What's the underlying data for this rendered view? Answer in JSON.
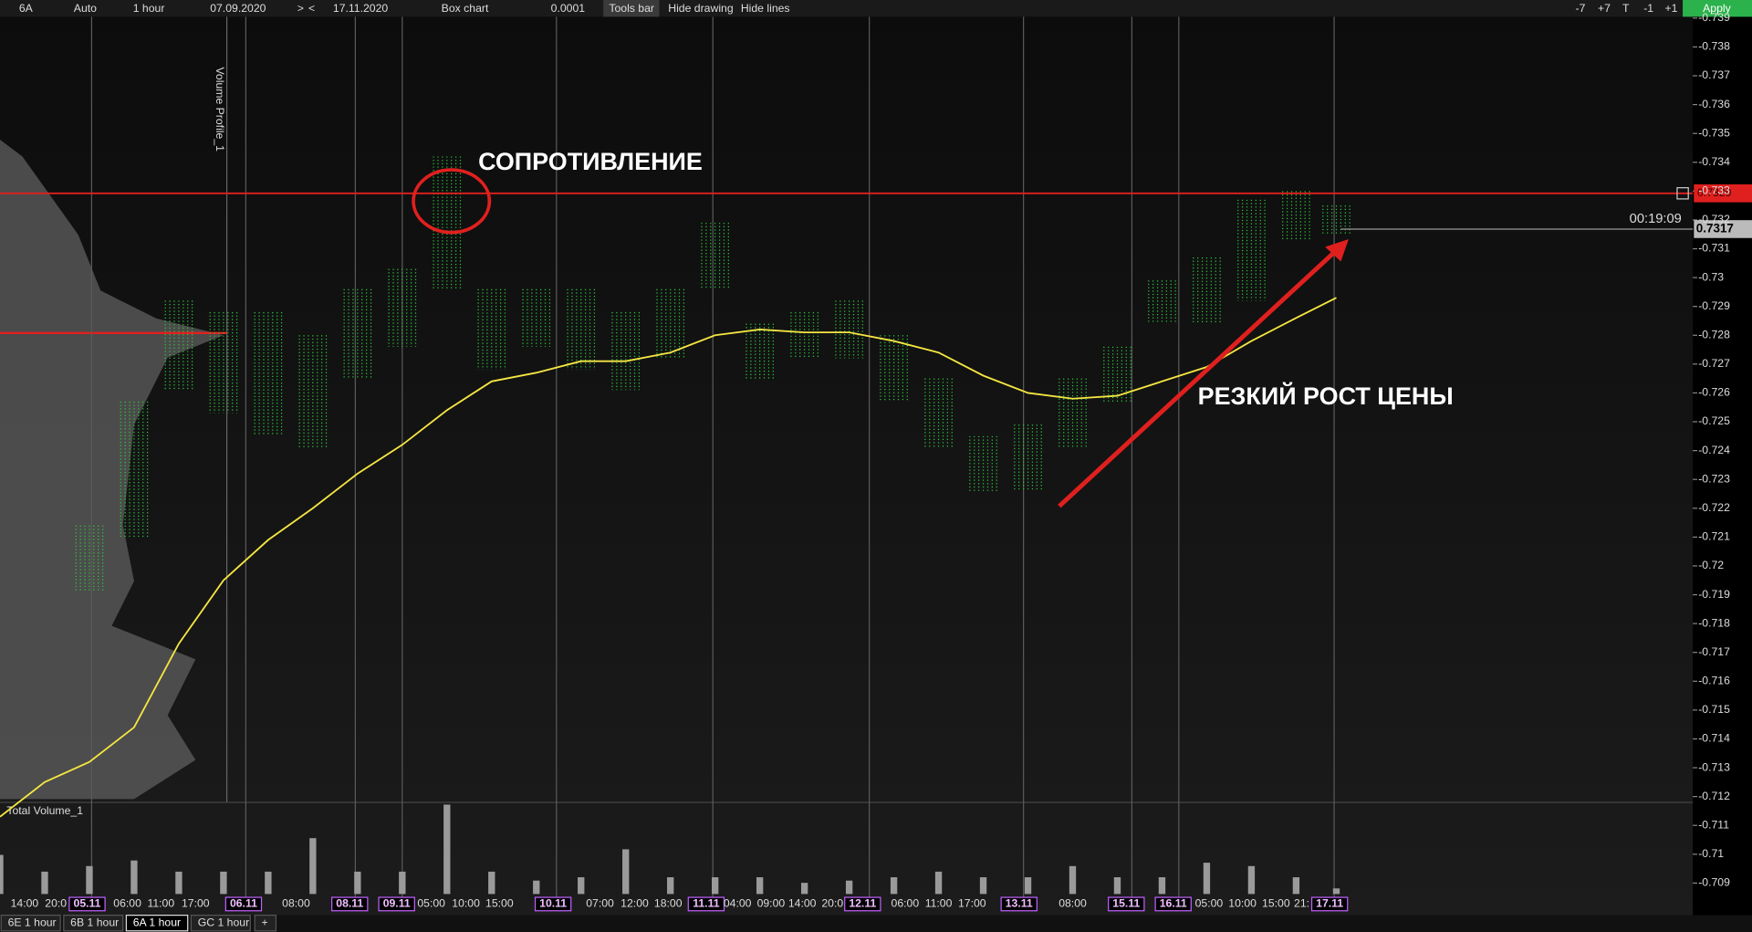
{
  "toolbar": {
    "left": [
      "6A",
      "Auto",
      "1 hour",
      "07.09.2020",
      ">",
      "<",
      "17.11.2020",
      "Box chart",
      "0.0001",
      "Tools bar",
      "Hide drawing",
      "Hide lines"
    ],
    "right": [
      "-7",
      "+7",
      "T",
      "-1",
      "+1",
      "Apply"
    ]
  },
  "chart_data": {
    "type": "box",
    "panes": {
      "price": "Volume Profile_1",
      "volume": "Total Volume_1"
    },
    "annotations": [
      "СОПРОТИВЛЕНИЕ",
      "РЕЗКИЙ РОСТ ЦЕНЫ"
    ],
    "price_labels": [
      "0.7329",
      "0.7317"
    ],
    "timer": "00:19:09",
    "ylim": [
      -0.739,
      -0.709
    ],
    "yticks": [
      -0.739,
      -0.738,
      -0.737,
      -0.736,
      -0.735,
      -0.734,
      -0.733,
      -0.732,
      -0.731,
      -0.73,
      -0.729,
      -0.728,
      -0.727,
      -0.726,
      -0.725,
      -0.724,
      -0.723,
      -0.722,
      -0.721,
      -0.72,
      -0.719,
      -0.718,
      -0.717,
      -0.716,
      -0.715,
      -0.714,
      -0.713,
      -0.712,
      -0.711,
      -0.71,
      -0.709
    ],
    "x_labels": [
      "14:00",
      "20:0",
      "05.11",
      "06:00",
      "11:00",
      "17:00",
      "06.11",
      "08:00",
      "08.11",
      "09.11",
      "05:00",
      "10:00",
      "15:00",
      "10.11",
      "07:00",
      "12:00",
      "18:00",
      "11.11",
      "04:00",
      "09:00",
      "14:00",
      "20:0",
      "12.11",
      "06:00",
      "11:00",
      "17:00",
      "13.11",
      "08:00",
      "15.11",
      "16.11",
      "05:00",
      "10:00",
      "15:00",
      "21:",
      "17.11"
    ],
    "series": [
      {
        "name": "high",
        "color": "#2ecc40",
        "values": [
          null,
          null,
          -0.7214,
          -0.7257,
          -0.7292,
          -0.7288,
          -0.7288,
          -0.728,
          -0.7296,
          -0.7303,
          -0.7342,
          -0.7296,
          -0.7296,
          -0.7296,
          -0.7288,
          -0.7296,
          -0.7319,
          -0.7284,
          -0.7288,
          -0.7292,
          -0.728,
          -0.7265,
          -0.7245,
          -0.7249,
          -0.7265,
          -0.7276,
          -0.7299,
          -0.7307,
          -0.7327,
          -0.733,
          -0.7325
        ]
      },
      {
        "name": "low",
        "color": "#2ecc40",
        "values": [
          null,
          null,
          -0.7191,
          -0.721,
          -0.7261,
          -0.7253,
          -0.7245,
          -0.7241,
          -0.7265,
          -0.7276,
          -0.7296,
          -0.7268,
          -0.7276,
          -0.7268,
          -0.7261,
          -0.7272,
          -0.7296,
          -0.7265,
          -0.7272,
          -0.7272,
          -0.7257,
          -0.7241,
          -0.7226,
          -0.7226,
          -0.7241,
          -0.7257,
          -0.7284,
          -0.7284,
          -0.7292,
          -0.7313,
          -0.7315
        ]
      },
      {
        "name": "ma",
        "color": "#f5e642",
        "values": [
          -0.7113,
          -0.7125,
          -0.7132,
          -0.7144,
          -0.7173,
          -0.7195,
          -0.7209,
          -0.722,
          -0.7232,
          -0.7242,
          -0.7254,
          -0.7264,
          -0.7267,
          -0.7271,
          -0.7271,
          -0.7274,
          -0.728,
          -0.7282,
          -0.7281,
          -0.7281,
          -0.7278,
          -0.7274,
          -0.7266,
          -0.726,
          -0.7258,
          -0.7259,
          -0.7264,
          -0.7269,
          -0.7278,
          -0.7286,
          -0.7293
        ]
      },
      {
        "name": "volume",
        "color": "#9a9a9a",
        "values": [
          35,
          20,
          25,
          30,
          20,
          20,
          20,
          50,
          20,
          20,
          80,
          20,
          12,
          15,
          40,
          15,
          15,
          15,
          10,
          12,
          15,
          20,
          15,
          15,
          25,
          15,
          15,
          28,
          25,
          15,
          5
        ]
      }
    ]
  },
  "tabs": [
    "6E 1 hour",
    "6B 1 hour",
    "6A 1 hour",
    "GC 1 hour",
    "+"
  ]
}
